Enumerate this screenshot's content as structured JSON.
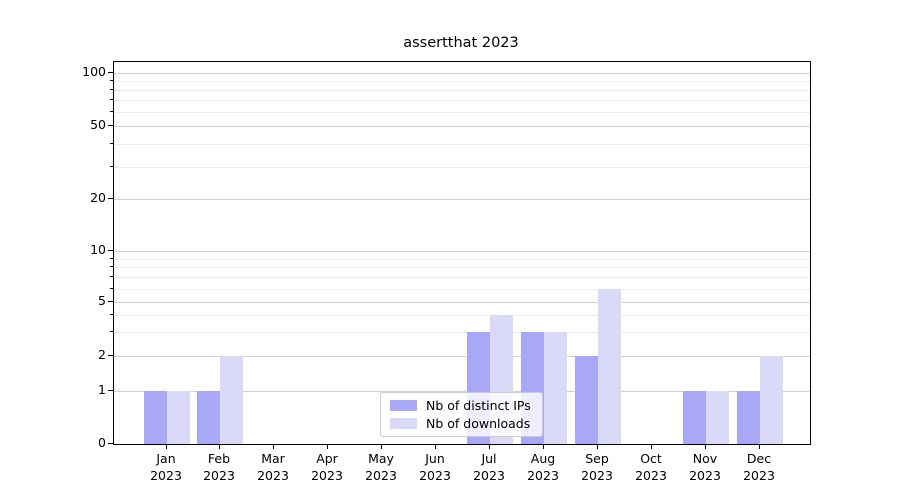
{
  "chart_data": {
    "type": "bar",
    "title": "assertthat 2023",
    "year_label": "2023",
    "months": [
      "Jan",
      "Feb",
      "Mar",
      "Apr",
      "May",
      "Jun",
      "Jul",
      "Aug",
      "Sep",
      "Oct",
      "Nov",
      "Dec"
    ],
    "series": [
      {
        "name": "Nb of distinct IPs",
        "color": "#a8a8f7",
        "values": [
          1,
          1,
          0,
          0,
          0,
          0,
          3,
          3,
          2,
          0,
          1,
          1
        ]
      },
      {
        "name": "Nb of downloads",
        "color": "#dadaf8",
        "values": [
          1,
          2,
          0,
          0,
          0,
          0,
          4,
          3,
          6,
          0,
          1,
          2
        ]
      }
    ],
    "yscale": "symlog",
    "ylim": [
      0,
      110
    ],
    "y_major_ticks": [
      0,
      1,
      2,
      5,
      10,
      20,
      50,
      100
    ],
    "y_minor_ticks": [
      3,
      4,
      6,
      7,
      8,
      9,
      30,
      40,
      60,
      70,
      80,
      90
    ],
    "grid": "both",
    "legend_position": "lower center"
  }
}
